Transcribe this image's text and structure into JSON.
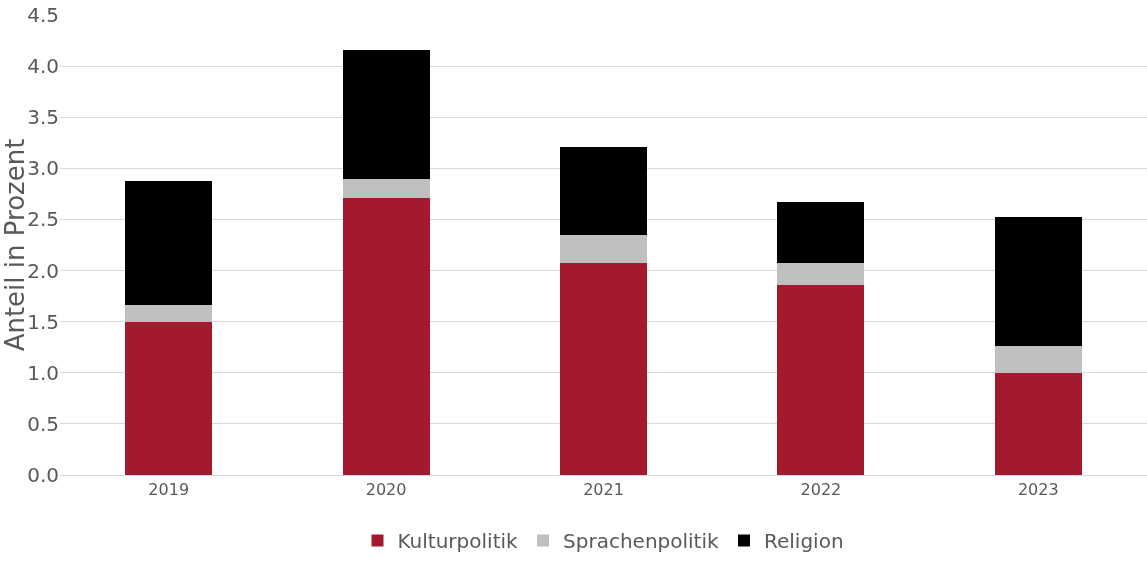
{
  "chart_data": {
    "type": "bar",
    "stacked": true,
    "ylabel": "Anteil in Prozent",
    "categories": [
      "2019",
      "2020",
      "2021",
      "2022",
      "2023"
    ],
    "series": [
      {
        "name": "Kulturpolitik",
        "color": "#a31a2e",
        "values": [
          1.5,
          2.71,
          2.07,
          1.86,
          1.0
        ]
      },
      {
        "name": "Sprachenpolitik",
        "color": "#bfbfbf",
        "values": [
          0.16,
          0.19,
          0.28,
          0.21,
          0.26
        ]
      },
      {
        "name": "Religion",
        "color": "#000000",
        "values": [
          1.22,
          1.26,
          0.86,
          0.6,
          1.26
        ]
      }
    ],
    "ylim": [
      0,
      4.5
    ],
    "yticks": [
      {
        "value": 0,
        "label": "0.0"
      },
      {
        "value": 0.5,
        "label": "0.5"
      },
      {
        "value": 1,
        "label": "1.0"
      },
      {
        "value": 1.5,
        "label": "1.5"
      },
      {
        "value": 2,
        "label": "2.0"
      },
      {
        "value": 2.5,
        "label": "2.5"
      },
      {
        "value": 3,
        "label": "3.0"
      },
      {
        "value": 3.5,
        "label": "3.5"
      },
      {
        "value": 4,
        "label": "4.0"
      },
      {
        "value": 4.5,
        "label": "4.5"
      }
    ],
    "grid": "y",
    "legend": "bottom"
  }
}
